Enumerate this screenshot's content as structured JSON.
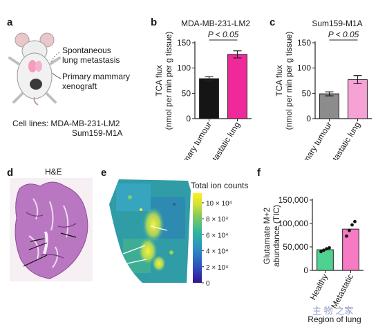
{
  "panels": {
    "a": {
      "letter": "a",
      "label_metastasis_1": "Spontaneous",
      "label_metastasis_2": "lung metastasis",
      "label_xenograft_1": "Primary mammary",
      "label_xenograft_2": "xenograft",
      "cell_lines_1": "Cell lines: MDA-MB-231-LM2",
      "cell_lines_2": "Sum159-M1A"
    },
    "b": {
      "letter": "b"
    },
    "c": {
      "letter": "c"
    },
    "d": {
      "letter": "d",
      "title": "H&E"
    },
    "e": {
      "letter": "e",
      "colorbar_title": "Total ion counts",
      "colorbar_ticks": [
        "10 × 10⁴",
        "8 × 10⁴",
        "6 × 10⁴",
        "4 × 10⁴",
        "2 × 10⁴",
        "0"
      ]
    },
    "f": {
      "letter": "f"
    }
  },
  "chart_data": [
    {
      "id": "b",
      "type": "bar",
      "title": "MDA-MB-231-LM2",
      "annotation": "P < 0.05",
      "ylabel_1": "TCA flux",
      "ylabel_2": "(nmol per min per g tissue)",
      "ylim": [
        0,
        150
      ],
      "yticks": [
        "0",
        "50",
        "100",
        "150"
      ],
      "categories": [
        "Primary tumour",
        "Metastatic lung"
      ],
      "values": [
        79,
        127
      ],
      "errors": [
        4,
        7
      ],
      "colors": [
        "#151515",
        "#f0299a"
      ]
    },
    {
      "id": "c",
      "type": "bar",
      "title": "Sum159-M1A",
      "annotation": "P < 0.05",
      "ylabel_1": "TCA flux",
      "ylabel_2": "(nmol per min per g tissue)",
      "ylim": [
        0,
        150
      ],
      "yticks": [
        "0",
        "50",
        "100",
        "150"
      ],
      "categories": [
        "Primary tumour",
        "Metastatic lung"
      ],
      "values": [
        49,
        77
      ],
      "errors": [
        4,
        8
      ],
      "colors": [
        "#8c8c8c",
        "#f7a2d4"
      ]
    },
    {
      "id": "f",
      "type": "bar",
      "ylabel_1": "Glutamate M+2",
      "ylabel_2": "abundance (TIC)",
      "xlabel": "Region of lung",
      "ylim": [
        0,
        150000
      ],
      "yticks": [
        "0",
        "50,000",
        "100,000",
        "150,000"
      ],
      "categories": [
        "Healthy",
        "Metastatic"
      ],
      "values": [
        44000,
        88000
      ],
      "points": [
        [
          40000,
          43000,
          46000,
          48000
        ],
        [
          73000,
          85000,
          97000,
          104000
        ]
      ],
      "colors": [
        "#4fd28f",
        "#f77ac4"
      ]
    }
  ],
  "watermark": "主 物 之家"
}
